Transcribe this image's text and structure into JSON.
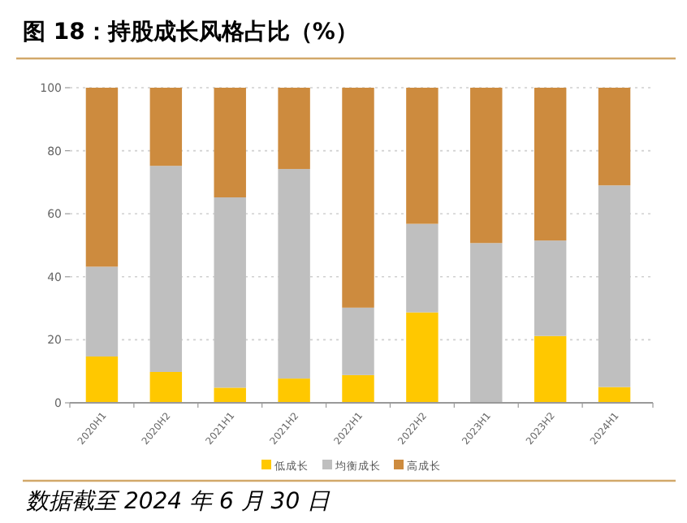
{
  "chart_data": {
    "type": "bar",
    "stacked": true,
    "title": "图 18：持股成长风格占比（%）",
    "categories": [
      "2020H1",
      "2020H2",
      "2021H1",
      "2021H2",
      "2022H1",
      "2022H2",
      "2023H1",
      "2023H2",
      "2024H1"
    ],
    "series": [
      {
        "name": "低成长",
        "color": "#ffc800",
        "values": [
          14.7,
          9.8,
          4.8,
          7.7,
          8.8,
          28.7,
          0,
          21.2,
          5.0
        ]
      },
      {
        "name": "均衡成长",
        "color": "#bfbfbf",
        "values": [
          28.5,
          65.4,
          60.4,
          66.5,
          21.4,
          28.1,
          50.7,
          30.3,
          64.0
        ]
      },
      {
        "name": "高成长",
        "color": "#cd8b3e",
        "values": [
          56.8,
          24.8,
          34.8,
          25.8,
          69.8,
          43.2,
          49.3,
          48.5,
          31.0
        ]
      }
    ],
    "ylim": [
      0,
      100
    ],
    "yticks": [
      0,
      20,
      40,
      60,
      80,
      100
    ],
    "grid": "y",
    "legend": "bottom",
    "annotations": [
      "数据截至 2024 年 6 月 30 日"
    ]
  }
}
